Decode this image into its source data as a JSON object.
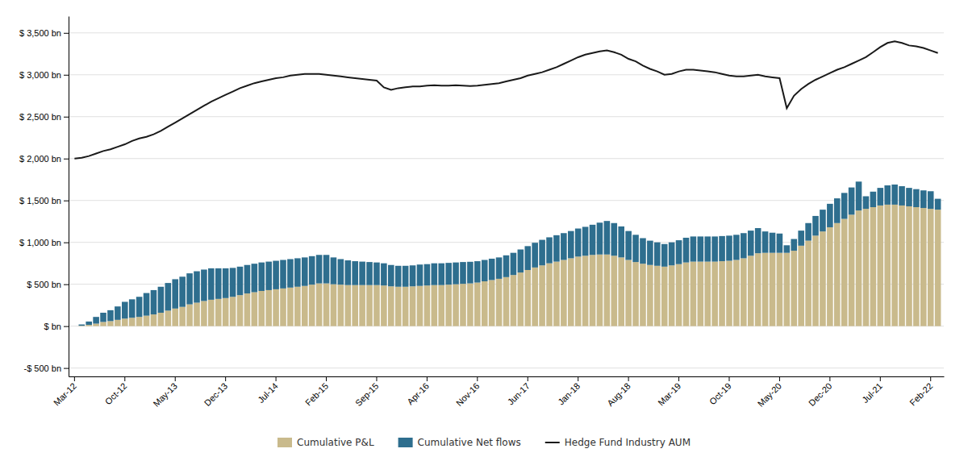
{
  "chart_data": {
    "type": "bar",
    "stacked": true,
    "grid": true,
    "legend": "bottom",
    "categories": [
      "Mar-12",
      null,
      null,
      null,
      null,
      null,
      null,
      "Oct-12",
      null,
      null,
      null,
      null,
      null,
      null,
      "May-13",
      null,
      null,
      null,
      null,
      null,
      null,
      "Dec-13",
      null,
      null,
      null,
      null,
      null,
      null,
      "Jul-14",
      null,
      null,
      null,
      null,
      null,
      null,
      "Feb-15",
      null,
      null,
      null,
      null,
      null,
      null,
      "Sep-15",
      null,
      null,
      null,
      null,
      null,
      null,
      "Apr-16",
      null,
      null,
      null,
      null,
      null,
      null,
      "Nov-16",
      null,
      null,
      null,
      null,
      null,
      null,
      "Jun-17",
      null,
      null,
      null,
      null,
      null,
      null,
      "Jan-18",
      null,
      null,
      null,
      null,
      null,
      null,
      "Aug-18",
      null,
      null,
      null,
      null,
      null,
      null,
      "Mar-19",
      null,
      null,
      null,
      null,
      null,
      null,
      "Oct-19",
      null,
      null,
      null,
      null,
      null,
      null,
      "May-20",
      null,
      null,
      null,
      null,
      null,
      null,
      "Dec-20",
      null,
      null,
      null,
      null,
      null,
      null,
      "Jul-21",
      null,
      null,
      null,
      null,
      null,
      null,
      "Feb-22",
      null
    ],
    "ylim": [
      -600,
      3700
    ],
    "yticks": [
      {
        "value": -500,
        "label": "-$ 500 bn"
      },
      {
        "value": 0,
        "label": "$  bn"
      },
      {
        "value": 500,
        "label": "$ 500 bn"
      },
      {
        "value": 1000,
        "label": "$ 1,000 bn"
      },
      {
        "value": 1500,
        "label": "$ 1,500 bn"
      },
      {
        "value": 2000,
        "label": "$ 2,000 bn"
      },
      {
        "value": 2500,
        "label": "$ 2,500 bn"
      },
      {
        "value": 3000,
        "label": "$ 3,000 bn"
      },
      {
        "value": 3500,
        "label": "$ 3,500 bn"
      }
    ],
    "series": [
      {
        "name": "Cumulative P&L",
        "type": "bar",
        "color": "#C9BA8C",
        "values": [
          0,
          5,
          15,
          30,
          50,
          60,
          75,
          90,
          100,
          110,
          125,
          140,
          160,
          185,
          210,
          230,
          260,
          280,
          300,
          315,
          325,
          335,
          350,
          370,
          390,
          405,
          420,
          430,
          440,
          450,
          460,
          470,
          480,
          495,
          510,
          510,
          500,
          495,
          490,
          490,
          490,
          490,
          490,
          485,
          475,
          470,
          470,
          475,
          480,
          485,
          490,
          490,
          495,
          500,
          505,
          510,
          520,
          535,
          550,
          565,
          585,
          610,
          640,
          670,
          700,
          725,
          750,
          770,
          790,
          810,
          830,
          840,
          850,
          855,
          855,
          840,
          820,
          790,
          765,
          745,
          730,
          720,
          710,
          725,
          740,
          760,
          770,
          770,
          770,
          770,
          775,
          780,
          790,
          810,
          840,
          870,
          875,
          875,
          875,
          875,
          900,
          960,
          1020,
          1080,
          1130,
          1180,
          1230,
          1280,
          1330,
          1380,
          1400,
          1420,
          1440,
          1450,
          1450,
          1440,
          1430,
          1420,
          1410,
          1400,
          1390
        ]
      },
      {
        "name": "Cumulative Net flows",
        "type": "bar",
        "color": "#2E6E8E",
        "values": [
          0,
          15,
          40,
          80,
          110,
          130,
          160,
          200,
          220,
          240,
          270,
          290,
          310,
          330,
          350,
          360,
          370,
          375,
          375,
          375,
          365,
          355,
          345,
          340,
          340,
          340,
          340,
          340,
          340,
          340,
          340,
          340,
          340,
          340,
          340,
          340,
          320,
          305,
          295,
          285,
          280,
          275,
          270,
          265,
          255,
          250,
          250,
          250,
          255,
          255,
          260,
          260,
          260,
          260,
          260,
          258,
          255,
          255,
          255,
          255,
          260,
          265,
          275,
          285,
          295,
          305,
          310,
          315,
          320,
          325,
          335,
          345,
          360,
          380,
          400,
          390,
          370,
          345,
          325,
          305,
          290,
          280,
          270,
          275,
          285,
          295,
          300,
          300,
          300,
          300,
          300,
          300,
          300,
          300,
          300,
          300,
          255,
          240,
          230,
          90,
          140,
          180,
          210,
          235,
          260,
          280,
          295,
          310,
          325,
          345,
          150,
          185,
          210,
          230,
          240,
          230,
          220,
          215,
          210,
          210,
          130
        ]
      },
      {
        "name": "Hedge Fund Industry AUM",
        "type": "line",
        "color": "#1A1A1A",
        "values": [
          2000,
          2010,
          2030,
          2060,
          2090,
          2110,
          2140,
          2170,
          2210,
          2240,
          2260,
          2290,
          2330,
          2380,
          2430,
          2480,
          2530,
          2580,
          2630,
          2680,
          2720,
          2760,
          2800,
          2840,
          2870,
          2900,
          2920,
          2940,
          2960,
          2970,
          2990,
          3000,
          3010,
          3010,
          3010,
          3000,
          2990,
          2980,
          2970,
          2960,
          2950,
          2940,
          2930,
          2850,
          2820,
          2840,
          2850,
          2860,
          2860,
          2870,
          2875,
          2870,
          2870,
          2875,
          2870,
          2865,
          2870,
          2880,
          2890,
          2900,
          2920,
          2940,
          2960,
          2990,
          3010,
          3030,
          3060,
          3090,
          3130,
          3170,
          3210,
          3240,
          3260,
          3280,
          3290,
          3270,
          3240,
          3190,
          3160,
          3110,
          3070,
          3040,
          3000,
          3010,
          3040,
          3060,
          3060,
          3050,
          3040,
          3030,
          3010,
          2990,
          2980,
          2980,
          2990,
          3000,
          2980,
          2970,
          2960,
          2600,
          2750,
          2830,
          2890,
          2940,
          2980,
          3020,
          3060,
          3090,
          3130,
          3170,
          3210,
          3270,
          3330,
          3380,
          3400,
          3380,
          3350,
          3340,
          3320,
          3290,
          3260
        ]
      }
    ]
  }
}
